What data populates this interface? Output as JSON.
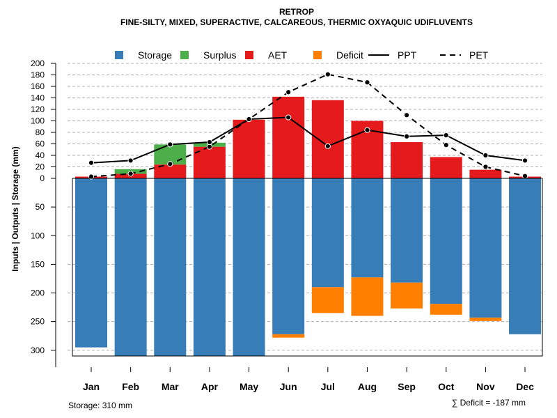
{
  "chart_data": {
    "type": "bar",
    "title": "RETROP",
    "subtitle": "FINE-SILTY, MIXED, SUPERACTIVE, CALCAREOUS, THERMIC OXYAQUIC UDIFLUVENTS",
    "ylabel": "Inputs | Outputs | Storage    (mm)",
    "categories": [
      "Jan",
      "Feb",
      "Mar",
      "Apr",
      "May",
      "Jun",
      "Jul",
      "Aug",
      "Sep",
      "Oct",
      "Nov",
      "Dec"
    ],
    "upper_ylim": [
      0,
      200
    ],
    "upper_ticks": [
      "0",
      "20",
      "40",
      "60",
      "80",
      "100",
      "120",
      "140",
      "160",
      "180",
      "200"
    ],
    "lower_ylim": [
      0,
      310
    ],
    "lower_ticks": [
      "50",
      "100",
      "150",
      "200",
      "250",
      "300"
    ],
    "series": [
      {
        "name": "Storage",
        "color": "#377EB8",
        "values": [
          295,
          310,
          310,
          310,
          310,
          272,
          190,
          173,
          182,
          219,
          243,
          272
        ]
      },
      {
        "name": "Deficit",
        "color": "#FF7F00",
        "values": [
          0,
          0,
          0,
          0,
          0,
          6,
          45,
          67,
          45,
          19,
          6,
          0
        ]
      },
      {
        "name": "AET",
        "color": "#E41A1C",
        "values": [
          3,
          8,
          24,
          55,
          102,
          142,
          136,
          100,
          63,
          37,
          15,
          3
        ]
      },
      {
        "name": "Surplus",
        "color": "#4DAF4A",
        "values": [
          0,
          8,
          35,
          7,
          0,
          0,
          0,
          0,
          0,
          0,
          0,
          0
        ]
      },
      {
        "name": "PPT",
        "color": "#000000",
        "values": [
          27,
          31,
          59,
          63,
          103,
          106,
          56,
          84,
          73,
          75,
          40,
          31
        ]
      },
      {
        "name": "PET",
        "color": "#000000",
        "values": [
          3,
          8,
          25,
          55,
          103,
          150,
          181,
          167,
          110,
          58,
          20,
          4
        ]
      }
    ],
    "legend": [
      {
        "label": "Storage",
        "kind": "box",
        "color": "#377EB8"
      },
      {
        "label": "Surplus",
        "kind": "box",
        "color": "#4DAF4A"
      },
      {
        "label": "AET",
        "kind": "box",
        "color": "#E41A1C"
      },
      {
        "label": "Deficit",
        "kind": "box",
        "color": "#FF7F00"
      },
      {
        "label": "PPT",
        "kind": "solid",
        "color": "#000000"
      },
      {
        "label": "PET",
        "kind": "dashed",
        "color": "#000000"
      }
    ],
    "legend_position": "top",
    "grid": true,
    "storage_note": "Storage: 310 mm",
    "deficit_note": "∑ Deficit = -187 mm"
  }
}
